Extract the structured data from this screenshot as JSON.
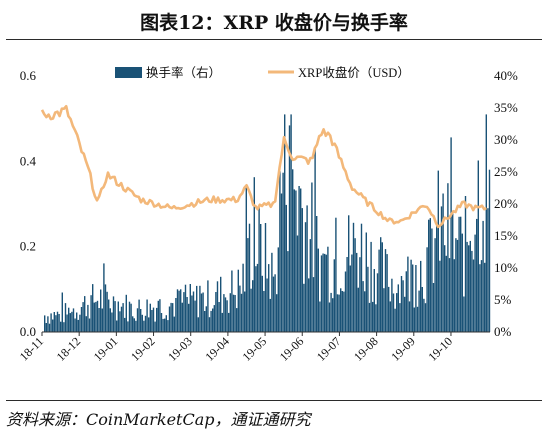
{
  "title": "图表12：XRP 收盘价与换手率",
  "source": "资料来源：CoinMarketCap，通证通研究",
  "colors": {
    "bars": "#1a5276",
    "line": "#f3b87a",
    "axis": "#333333"
  },
  "chart_data": {
    "type": "bar+line",
    "legend": {
      "position": "top-center",
      "items": [
        {
          "label": "换手率（右）",
          "kind": "bar"
        },
        {
          "label": "XRP收盘价（USD）",
          "kind": "line"
        }
      ]
    },
    "x_tick_labels": [
      "18-11",
      "18-12",
      "19-01",
      "19-02",
      "19-03",
      "19-04",
      "19-05",
      "19-06",
      "19-07",
      "19-08",
      "19-09",
      "19-10"
    ],
    "left_axis": {
      "ticks": [
        "0.0",
        "0.2",
        "0.4",
        "0.6"
      ],
      "range": [
        0,
        0.6
      ],
      "unit": "USD"
    },
    "right_axis": {
      "ticks": [
        "0%",
        "5%",
        "10%",
        "15%",
        "20%",
        "25%",
        "30%",
        "35%",
        "40%"
      ],
      "range": [
        0,
        40
      ],
      "unit": "%"
    },
    "series": [
      {
        "name": "XRP收盘价（USD）",
        "axis": "left",
        "keypoints": [
          {
            "x": "18-11",
            "y": 0.51
          },
          {
            "x": "18-11",
            "y": 0.52
          },
          {
            "x": "18-12",
            "y": 0.38
          },
          {
            "x": "18-12",
            "y": 0.3
          },
          {
            "x": "18-12",
            "y": 0.37
          },
          {
            "x": "19-01",
            "y": 0.33
          },
          {
            "x": "19-01",
            "y": 0.31
          },
          {
            "x": "19-02",
            "y": 0.29
          },
          {
            "x": "19-03",
            "y": 0.31
          },
          {
            "x": "19-04",
            "y": 0.31
          },
          {
            "x": "19-04",
            "y": 0.34
          },
          {
            "x": "19-04",
            "y": 0.29
          },
          {
            "x": "19-05",
            "y": 0.3
          },
          {
            "x": "19-05",
            "y": 0.45
          },
          {
            "x": "19-05",
            "y": 0.41
          },
          {
            "x": "19-06",
            "y": 0.4
          },
          {
            "x": "19-06",
            "y": 0.47
          },
          {
            "x": "19-06",
            "y": 0.46
          },
          {
            "x": "19-07",
            "y": 0.34
          },
          {
            "x": "19-07",
            "y": 0.31
          },
          {
            "x": "19-08",
            "y": 0.26
          },
          {
            "x": "19-08",
            "y": 0.26
          },
          {
            "x": "19-09",
            "y": 0.3
          },
          {
            "x": "19-09",
            "y": 0.25
          },
          {
            "x": "19-10",
            "y": 0.3
          },
          {
            "x": "19-10",
            "y": 0.29
          }
        ]
      },
      {
        "name": "换手率（右）",
        "axis": "right",
        "keypoints": [
          {
            "x": "18-11",
            "y": 3
          },
          {
            "x": "18-12",
            "y": 6
          },
          {
            "x": "19-01",
            "y": 4
          },
          {
            "x": "19-02",
            "y": 5
          },
          {
            "x": "19-03",
            "y": 6
          },
          {
            "x": "19-04",
            "y": 8
          },
          {
            "x": "19-04",
            "y": 17
          },
          {
            "x": "19-05",
            "y": 9
          },
          {
            "x": "19-05",
            "y": 34
          },
          {
            "x": "19-05",
            "y": 27
          },
          {
            "x": "19-06",
            "y": 12
          },
          {
            "x": "19-07",
            "y": 15
          },
          {
            "x": "19-08",
            "y": 8
          },
          {
            "x": "19-09",
            "y": 12
          },
          {
            "x": "19-09",
            "y": 19
          },
          {
            "x": "19-10",
            "y": 14
          },
          {
            "x": "19-10",
            "y": 25
          }
        ]
      }
    ]
  }
}
